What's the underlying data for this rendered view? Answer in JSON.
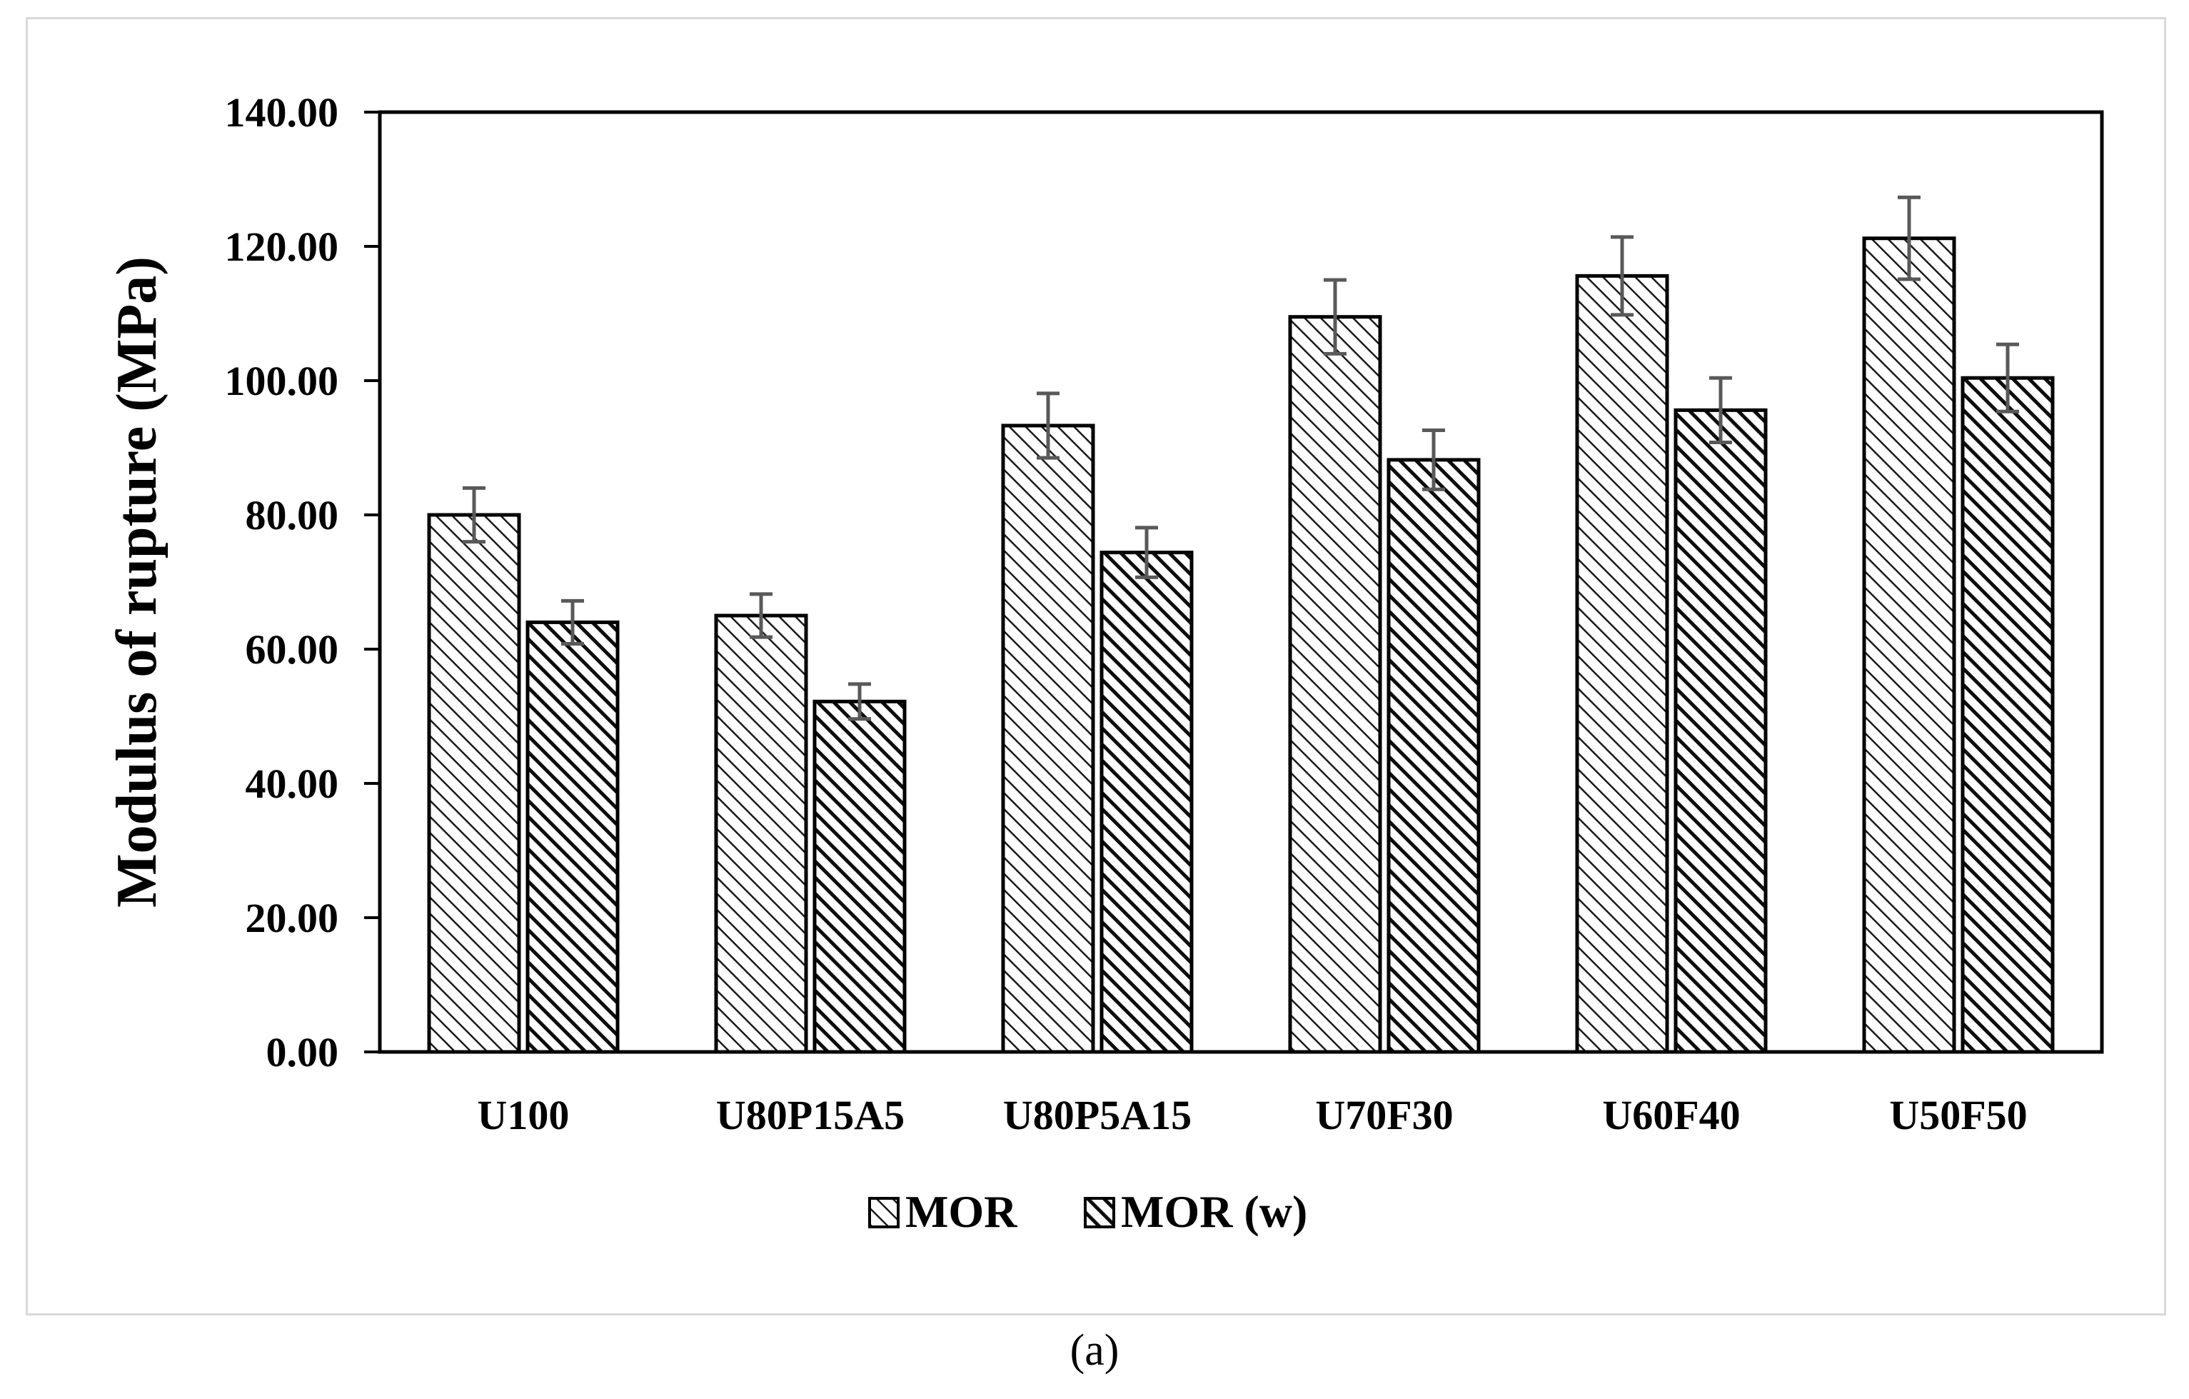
{
  "chart_data": {
    "type": "bar",
    "title": "",
    "xlabel": "",
    "ylabel": "Modulus of rupture (MPa)",
    "ylim": [
      0,
      140
    ],
    "yticks": [
      "0.00",
      "20.00",
      "40.00",
      "60.00",
      "80.00",
      "100.00",
      "120.00",
      "140.00"
    ],
    "ytick_values": [
      0,
      20,
      40,
      60,
      80,
      100,
      120,
      140
    ],
    "categories": [
      "U100",
      "U80P15A5",
      "U80P5A15",
      "U70F30",
      "U60F40",
      "U50F50"
    ],
    "series": [
      {
        "name": "MOR",
        "values": [
          80.0,
          65.0,
          93.3,
          109.5,
          115.6,
          121.2
        ],
        "errors": [
          4.0,
          3.2,
          4.8,
          5.5,
          5.8,
          6.1
        ],
        "pattern": "light-hatch"
      },
      {
        "name": "MOR (w)",
        "values": [
          64.0,
          52.2,
          74.4,
          88.2,
          95.6,
          100.4
        ],
        "errors": [
          3.2,
          2.6,
          3.7,
          4.4,
          4.8,
          5.0
        ],
        "pattern": "dark-hatch"
      }
    ],
    "grid": false,
    "legend_position": "bottom-center",
    "colors": {
      "bar_border": "#000000",
      "error_bar": "#595959",
      "frame": "#d9d9d9"
    }
  },
  "caption": "(a)"
}
